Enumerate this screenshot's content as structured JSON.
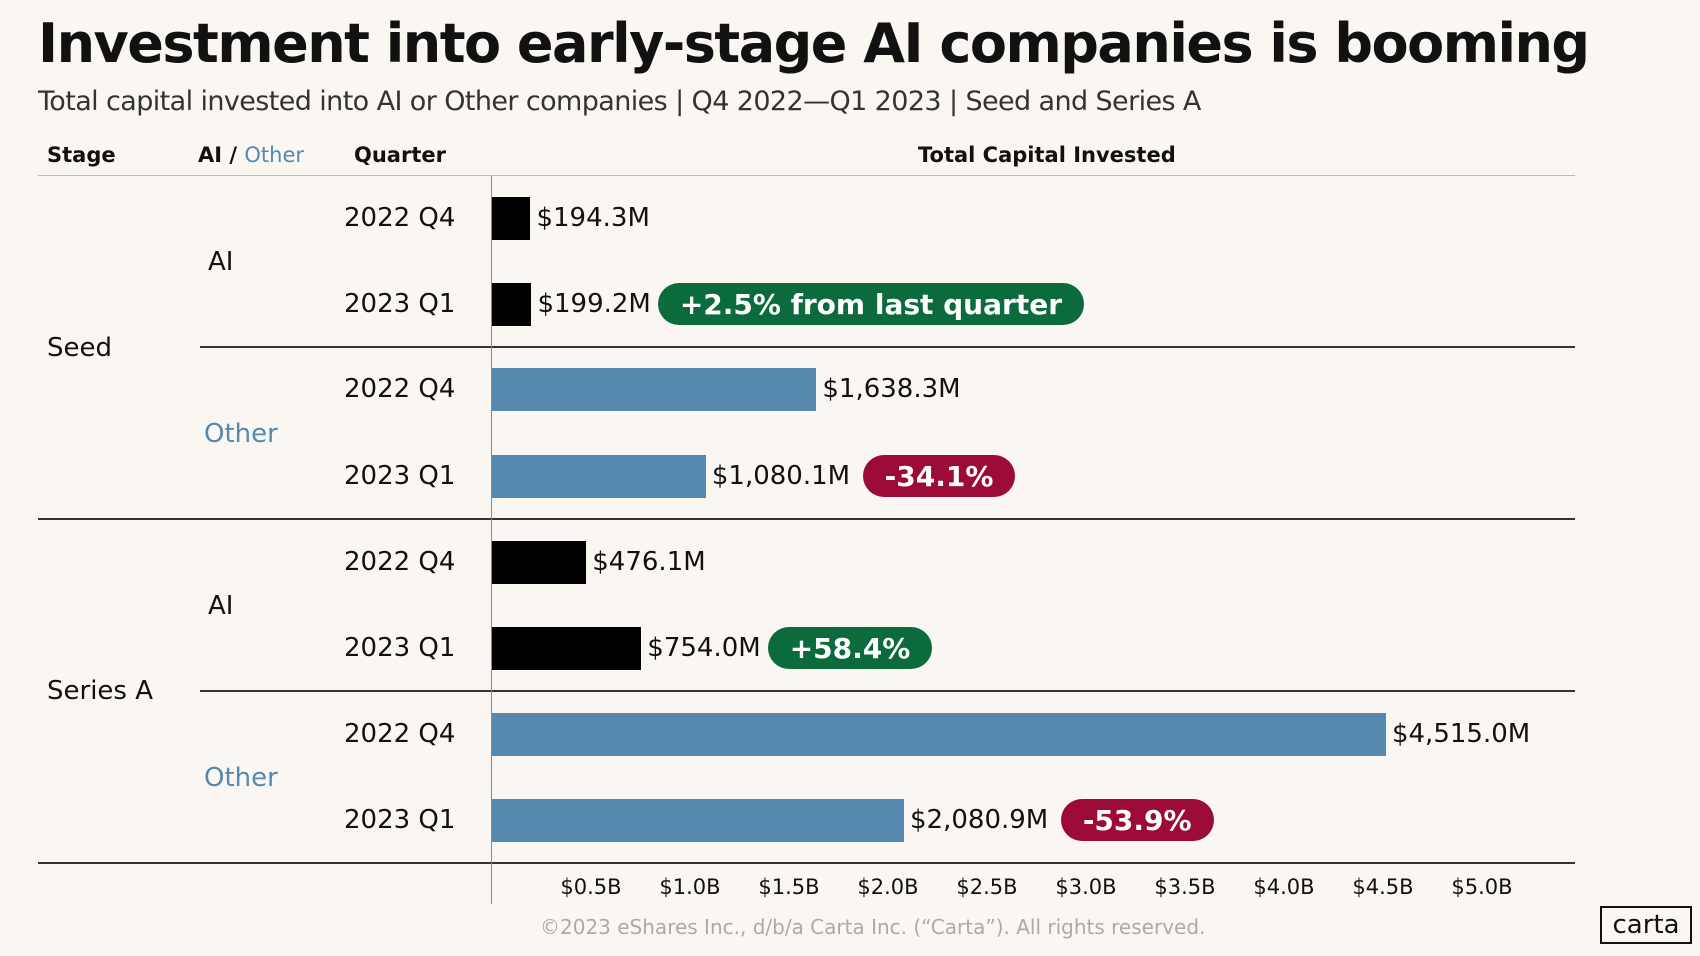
{
  "title": "Investment into early-stage AI companies is booming",
  "subtitle": "Total capital invested into AI or Other companies |  Q4 2022—Q1 2023  | Seed and Series A",
  "headers": {
    "stage": "Stage",
    "ai": "AI",
    "slash": " / ",
    "other": "Other",
    "quarter": "Quarter",
    "total": "Total Capital Invested"
  },
  "colors": {
    "ai": "#000000",
    "other": "#5589b0",
    "positive": "#0b6b3c",
    "negative": "#9c0b36",
    "other_text": "#5589b0"
  },
  "chart_data": {
    "type": "bar",
    "orientation": "horizontal",
    "xlabel": "Total Capital Invested",
    "xlim": [
      0,
      5.5
    ],
    "x_unit": "$B",
    "xticks": [
      "$0.5B",
      "$1.0B",
      "$1.5B",
      "$2.0B",
      "$2.5B",
      "$3.0B",
      "$3.5B",
      "$4.0B",
      "$4.5B",
      "$5.0B"
    ],
    "stages": [
      "Seed",
      "Series A"
    ],
    "groups": [
      "AI",
      "Other",
      "AI",
      "Other"
    ],
    "rows": [
      {
        "stage": "Seed",
        "group": "AI",
        "quarter": "2022 Q4",
        "value_m": 194.3,
        "label": "$194.3M"
      },
      {
        "stage": "Seed",
        "group": "AI",
        "quarter": "2023 Q1",
        "value_m": 199.2,
        "label": "$199.2M",
        "change": "+2.5% from last quarter",
        "change_sign": "positive"
      },
      {
        "stage": "Seed",
        "group": "Other",
        "quarter": "2022 Q4",
        "value_m": 1638.3,
        "label": "$1,638.3M"
      },
      {
        "stage": "Seed",
        "group": "Other",
        "quarter": "2023 Q1",
        "value_m": 1080.1,
        "label": "$1,080.1M",
        "change": "-34.1%",
        "change_sign": "negative"
      },
      {
        "stage": "Series A",
        "group": "AI",
        "quarter": "2022 Q4",
        "value_m": 476.1,
        "label": "$476.1M"
      },
      {
        "stage": "Series A",
        "group": "AI",
        "quarter": "2023 Q1",
        "value_m": 754.0,
        "label": "$754.0M",
        "change": "+58.4%",
        "change_sign": "positive"
      },
      {
        "stage": "Series A",
        "group": "Other",
        "quarter": "2022 Q4",
        "value_m": 4515.0,
        "label": "$4,515.0M"
      },
      {
        "stage": "Series A",
        "group": "Other",
        "quarter": "2023 Q1",
        "value_m": 2080.9,
        "label": "$2,080.9M",
        "change": "-53.9%",
        "change_sign": "negative"
      }
    ]
  },
  "footer": "©2023 eShares Inc., d/b/a Carta Inc. (“Carta”). All rights reserved.",
  "logo": "carta"
}
